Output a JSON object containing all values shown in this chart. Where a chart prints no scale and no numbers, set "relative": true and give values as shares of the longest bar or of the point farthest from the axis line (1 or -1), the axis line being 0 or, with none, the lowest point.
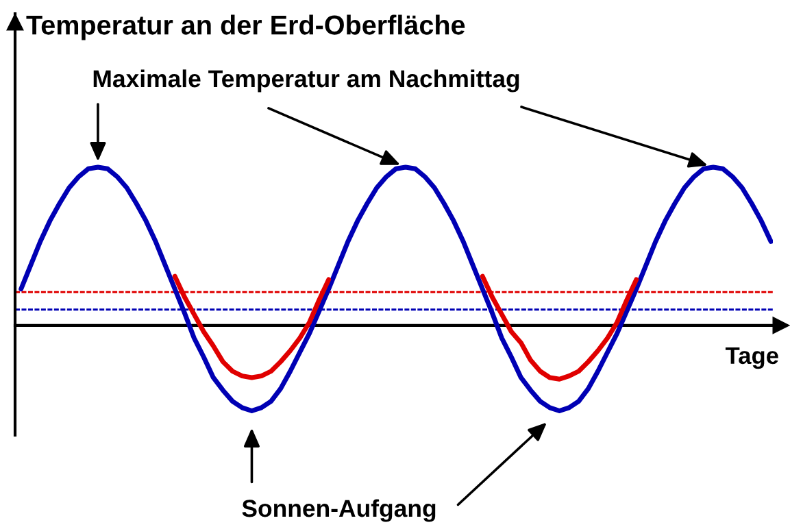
{
  "chart_data": {
    "type": "line",
    "relative": true,
    "title": "Temperatur an der Erd-Oberfläche",
    "xlabel": "Tage",
    "categories": [
      null,
      null,
      null,
      null,
      null,
      null,
      null,
      null,
      null,
      null,
      null,
      null,
      null,
      null,
      null,
      null,
      null,
      null,
      null,
      null,
      null,
      null,
      null,
      null,
      null,
      null,
      null,
      null,
      null,
      null,
      null,
      null,
      null,
      null,
      null,
      null,
      null,
      null,
      null,
      null,
      null,
      null,
      null,
      null,
      null,
      null,
      null,
      null,
      null,
      null,
      null,
      null,
      null,
      null,
      null,
      null,
      null,
      null,
      null,
      null,
      null,
      null,
      null,
      null,
      null,
      null,
      null,
      null,
      null,
      null,
      null,
      null,
      null,
      null,
      null,
      null,
      null,
      null,
      null
    ],
    "series": [
      {
        "color": "#0000b4",
        "values": [
          0.23,
          0.38,
          0.53,
          0.66,
          0.77,
          0.87,
          0.94,
          0.99,
          1.0,
          0.99,
          0.94,
          0.87,
          0.77,
          0.66,
          0.53,
          0.38,
          0.23,
          0.08,
          -0.08,
          -0.2,
          -0.33,
          -0.41,
          -0.48,
          -0.52,
          -0.54,
          -0.52,
          -0.48,
          -0.4,
          -0.29,
          -0.17,
          -0.05,
          0.09,
          0.23,
          0.38,
          0.53,
          0.66,
          0.77,
          0.87,
          0.94,
          0.99,
          1.0,
          0.99,
          0.94,
          0.87,
          0.77,
          0.66,
          0.53,
          0.38,
          0.23,
          0.08,
          -0.08,
          -0.2,
          -0.33,
          -0.41,
          -0.48,
          -0.52,
          -0.54,
          -0.52,
          -0.48,
          -0.4,
          -0.29,
          -0.17,
          -0.05,
          0.09,
          0.23,
          0.38,
          0.53,
          0.66,
          0.77,
          0.87,
          0.94,
          0.99,
          1.0,
          0.99,
          0.94,
          0.87,
          0.77,
          0.66,
          0.53
        ]
      },
      {
        "color": "#e00000",
        "values": [
          null,
          null,
          null,
          null,
          null,
          null,
          null,
          null,
          null,
          null,
          null,
          null,
          null,
          null,
          null,
          null,
          0.31,
          0.18,
          0.07,
          -0.04,
          -0.13,
          -0.23,
          -0.29,
          -0.32,
          -0.33,
          -0.32,
          -0.29,
          -0.23,
          -0.16,
          -0.08,
          0.02,
          0.16,
          0.29,
          null,
          null,
          null,
          null,
          null,
          null,
          null,
          null,
          null,
          null,
          null,
          null,
          null,
          null,
          null,
          0.31,
          0.18,
          0.07,
          -0.04,
          -0.11,
          -0.22,
          -0.29,
          -0.33,
          -0.34,
          -0.32,
          -0.29,
          -0.23,
          -0.16,
          -0.08,
          0.02,
          0.16,
          0.29,
          null,
          null,
          null,
          null,
          null,
          null,
          null,
          null,
          null,
          null,
          null,
          null,
          null,
          null
        ]
      }
    ],
    "ref_lines": [
      {
        "axis": "y",
        "value": 0.21,
        "color": "#e00000",
        "line_style": "dashed"
      },
      {
        "axis": "y",
        "value": 0.1,
        "color": "#0000b4",
        "line_style": "dashed"
      }
    ],
    "annotations": [
      "Maximale Temperatur am Nachmittag",
      "Sonnen-Aufgang"
    ]
  }
}
